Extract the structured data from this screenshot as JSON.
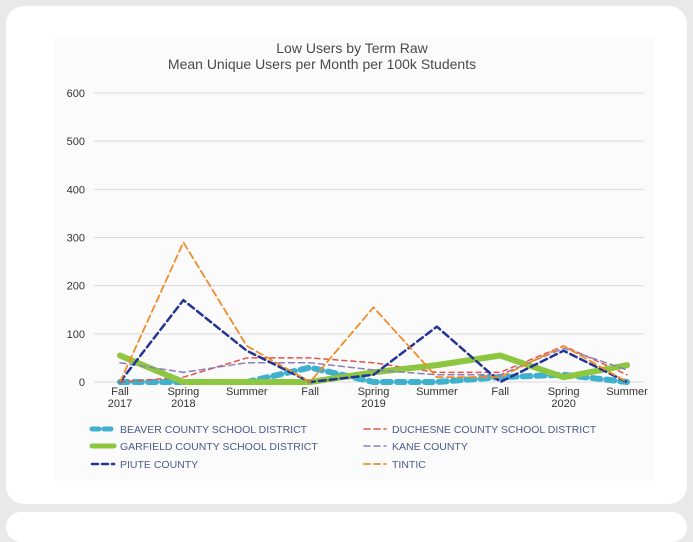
{
  "chart_data": {
    "type": "line",
    "title": "Low Users by Term Raw",
    "subtitle": "Mean Unique Users per Month per 100k Students",
    "xlabel": "",
    "ylabel": "",
    "ylim": [
      0,
      600
    ],
    "yticks": [
      0,
      100,
      200,
      300,
      400,
      500,
      600
    ],
    "categories": [
      "Fall 2017",
      "Spring 2018",
      "Summer",
      "Fall",
      "Spring 2019",
      "Summer",
      "Fall",
      "Spring 2020",
      "Summer"
    ],
    "category_lines": [
      [
        "Fall",
        "2017"
      ],
      [
        "Spring",
        "2018"
      ],
      [
        "Summer"
      ],
      [
        "Fall"
      ],
      [
        "Spring",
        "2019"
      ],
      [
        "Summer"
      ],
      [
        "Fall"
      ],
      [
        "Spring",
        "2020"
      ],
      [
        "Summer"
      ]
    ],
    "grid": true,
    "legend_position": "bottom",
    "series": [
      {
        "name": "BEAVER COUNTY  SCHOOL DISTRICT",
        "color": "#3fb1cf",
        "dash": "8,6",
        "width": 6,
        "values": [
          0,
          0,
          0,
          30,
          0,
          0,
          10,
          15,
          0
        ]
      },
      {
        "name": "DUCHESNE COUNTY SCHOOL DISTRICT",
        "color": "#e8534a",
        "dash": "5,4",
        "width": 1.5,
        "values": [
          0,
          10,
          50,
          50,
          40,
          20,
          20,
          75,
          15
        ]
      },
      {
        "name": "GARFIELD COUNTY SCHOOL DISTRICT",
        "color": "#8dc63f",
        "dash": "",
        "width": 6,
        "values": [
          55,
          0,
          0,
          0,
          20,
          35,
          55,
          10,
          35
        ]
      },
      {
        "name": "KANE COUNTY",
        "color": "#8a7fbd",
        "dash": "6,4",
        "width": 1.5,
        "values": [
          40,
          20,
          40,
          40,
          25,
          15,
          15,
          70,
          25
        ]
      },
      {
        "name": "PIUTE COUNTY",
        "color": "#253494",
        "dash": "7,4",
        "width": 2.5,
        "values": [
          0,
          170,
          65,
          0,
          15,
          115,
          0,
          65,
          0
        ]
      },
      {
        "name": "TINTIC",
        "color": "#f28c28",
        "dash": "7,4",
        "width": 1.8,
        "values": [
          0,
          290,
          75,
          0,
          155,
          10,
          10,
          75,
          0
        ]
      }
    ]
  }
}
